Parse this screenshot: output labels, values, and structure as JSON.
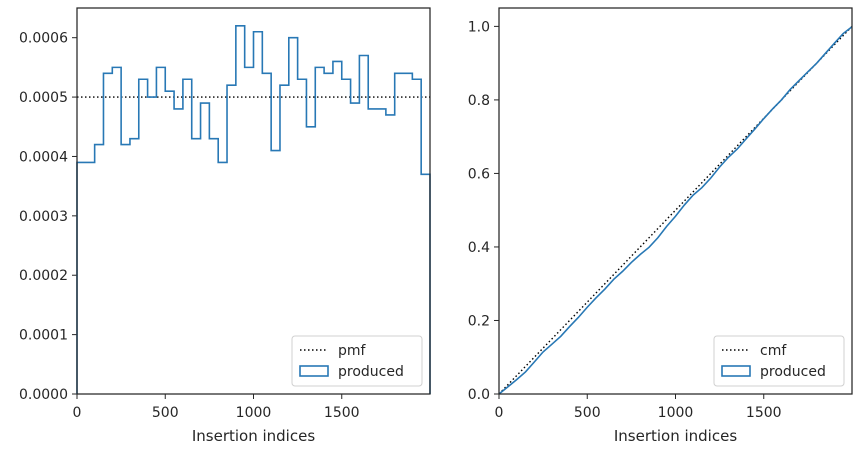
{
  "chart_data": [
    {
      "type": "step",
      "xlabel": "Insertion indices",
      "ylabel": "",
      "xlim": [
        0,
        2000
      ],
      "ylim": [
        0,
        0.00065
      ],
      "xticks": [
        "0",
        "500",
        "1000",
        "1500"
      ],
      "xtick_values": [
        0,
        500,
        1000,
        1500
      ],
      "yticks": [
        "0.0000",
        "0.0001",
        "0.0002",
        "0.0003",
        "0.0004",
        "0.0005",
        "0.0006"
      ],
      "ytick_values": [
        0,
        0.0001,
        0.0002,
        0.0003,
        0.0004,
        0.0005,
        0.0006
      ],
      "grid": false,
      "legend_position": "lower-right",
      "reference": {
        "name": "pmf",
        "value": 0.0005,
        "color": "#000000"
      },
      "series": [
        {
          "name": "produced",
          "color": "#2878b5",
          "bin_width": 50,
          "values": [
            0.00039,
            0.00039,
            0.00042,
            0.00054,
            0.00055,
            0.00042,
            0.00043,
            0.00053,
            0.0005,
            0.00055,
            0.00051,
            0.00048,
            0.00053,
            0.00043,
            0.00049,
            0.00043,
            0.00039,
            0.00052,
            0.00062,
            0.00055,
            0.00061,
            0.00054,
            0.00041,
            0.00052,
            0.0006,
            0.00053,
            0.00045,
            0.00055,
            0.00054,
            0.00056,
            0.00053,
            0.00049,
            0.00057,
            0.00048,
            0.00048,
            0.00047,
            0.00054,
            0.00054,
            0.00053,
            0.00037
          ]
        }
      ]
    },
    {
      "type": "step",
      "xlabel": "Insertion indices",
      "ylabel": "",
      "xlim": [
        0,
        2000
      ],
      "ylim": [
        0,
        1.05
      ],
      "xticks": [
        "0",
        "500",
        "1000",
        "1500"
      ],
      "xtick_values": [
        0,
        500,
        1000,
        1500
      ],
      "yticks": [
        "0.0",
        "0.2",
        "0.4",
        "0.6",
        "0.8",
        "1.0"
      ],
      "ytick_values": [
        0,
        0.2,
        0.4,
        0.6,
        0.8,
        1.0
      ],
      "grid": false,
      "legend_position": "lower-right",
      "reference": {
        "name": "cmf",
        "points": [
          [
            0,
            0
          ],
          [
            2000,
            1.0
          ]
        ],
        "color": "#000000"
      },
      "series": [
        {
          "name": "produced",
          "color": "#2878b5",
          "points": [
            [
              0,
              0
            ],
            [
              50,
              0.0195
            ],
            [
              100,
              0.039
            ],
            [
              150,
              0.06
            ],
            [
              200,
              0.087
            ],
            [
              250,
              0.1145
            ],
            [
              300,
              0.1355
            ],
            [
              350,
              0.157
            ],
            [
              400,
              0.1835
            ],
            [
              450,
              0.2085
            ],
            [
              500,
              0.236
            ],
            [
              550,
              0.2615
            ],
            [
              600,
              0.2855
            ],
            [
              650,
              0.312
            ],
            [
              700,
              0.3335
            ],
            [
              750,
              0.358
            ],
            [
              800,
              0.3795
            ],
            [
              850,
              0.399
            ],
            [
              900,
              0.425
            ],
            [
              950,
              0.456
            ],
            [
              1000,
              0.4835
            ],
            [
              1050,
              0.514
            ],
            [
              1100,
              0.541
            ],
            [
              1150,
              0.5615
            ],
            [
              1200,
              0.5875
            ],
            [
              1250,
              0.6175
            ],
            [
              1300,
              0.644
            ],
            [
              1350,
              0.6665
            ],
            [
              1400,
              0.694
            ],
            [
              1450,
              0.721
            ],
            [
              1500,
              0.749
            ],
            [
              1550,
              0.7755
            ],
            [
              1600,
              0.8
            ],
            [
              1650,
              0.8285
            ],
            [
              1700,
              0.8525
            ],
            [
              1750,
              0.8765
            ],
            [
              1800,
              0.9
            ],
            [
              1850,
              0.927
            ],
            [
              1900,
              0.954
            ],
            [
              1950,
              0.9805
            ],
            [
              2000,
              0.999
            ]
          ]
        }
      ]
    }
  ]
}
